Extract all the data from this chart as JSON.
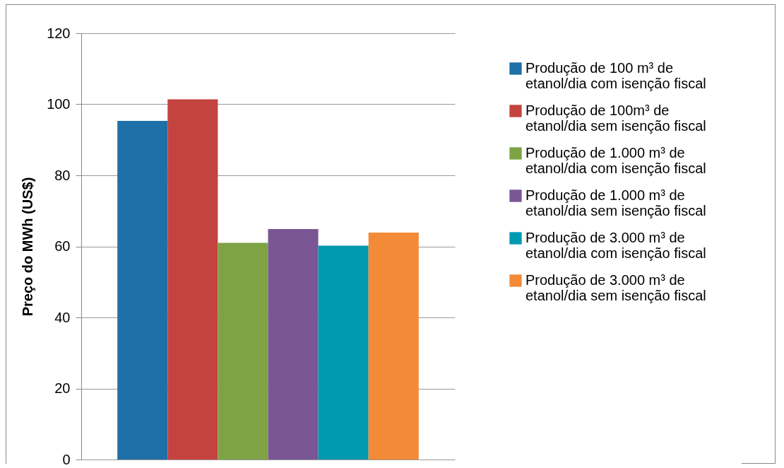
{
  "chart_data": {
    "type": "bar",
    "ylabel": "Preço do MWh (US$)",
    "categories": [
      null
    ],
    "series": [
      {
        "name": "Produção de 100 m³ de etanol/dia com isenção fiscal",
        "color": "#1f6fa8",
        "values": [
          95.3
        ]
      },
      {
        "name": "Produção de 100m³ de etanol/dia sem isenção fiscal",
        "color": "#c4433f",
        "values": [
          101.4
        ]
      },
      {
        "name": "Produção de 1.000 m³ de etanol/dia com isenção fiscal",
        "color": "#7ea345",
        "values": [
          61
        ]
      },
      {
        "name": "Produção de 1.000 m³ de etanol/dia sem isenção fiscal",
        "color": "#7a5694",
        "values": [
          64.9
        ]
      },
      {
        "name": "Produção de 3.000 m³ de etanol/dia com isenção fiscal",
        "color": "#0099b2",
        "values": [
          60.2
        ]
      },
      {
        "name": "Produção de 3.000 m³ de etanol/dia sem isenção fiscal",
        "color": "#f38a37",
        "values": [
          63.9
        ]
      }
    ],
    "ylim": [
      0,
      120
    ],
    "yticks": [
      0,
      20,
      40,
      60,
      80,
      100,
      120
    ],
    "grid": "y",
    "legend": "right"
  }
}
